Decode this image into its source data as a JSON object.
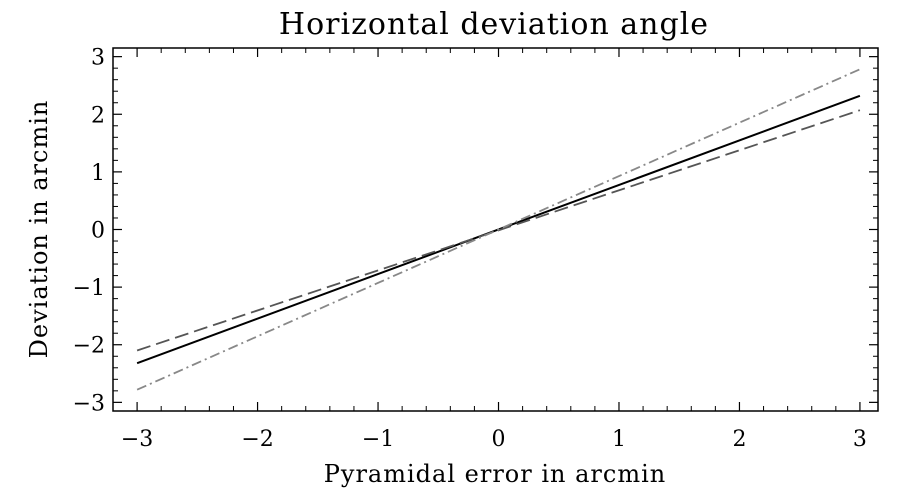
{
  "chart_data": {
    "type": "line",
    "title": "Horizontal deviation angle",
    "xlabel": "Pyramidal error in arcmin",
    "ylabel": "Deviation in arcmin",
    "xlim": [
      -3.2,
      3.15
    ],
    "ylim": [
      -3.15,
      3.15
    ],
    "xticks": [
      -3,
      -2,
      -1,
      0,
      1,
      2,
      3
    ],
    "yticks": [
      -3,
      -2,
      -1,
      0,
      1,
      2,
      3
    ],
    "xtick_labels": [
      "−3",
      "−2",
      "−1",
      "0",
      "1",
      "2",
      "3"
    ],
    "ytick_labels": [
      "−3",
      "−2",
      "−1",
      "0",
      "1",
      "2",
      "3"
    ],
    "minor_ticks_per_major": 5,
    "grid": false,
    "legend": "none",
    "series": [
      {
        "style": "solid",
        "color": "#000000",
        "x": [
          -3,
          3
        ],
        "y": [
          -2.32,
          2.32
        ]
      },
      {
        "style": "dashed",
        "color": "#555555",
        "x": [
          -3,
          3
        ],
        "y": [
          -2.1,
          2.07
        ]
      },
      {
        "style": "dash-dot",
        "color": "#888888",
        "x": [
          -3,
          3
        ],
        "y": [
          -2.78,
          2.78
        ]
      }
    ]
  }
}
